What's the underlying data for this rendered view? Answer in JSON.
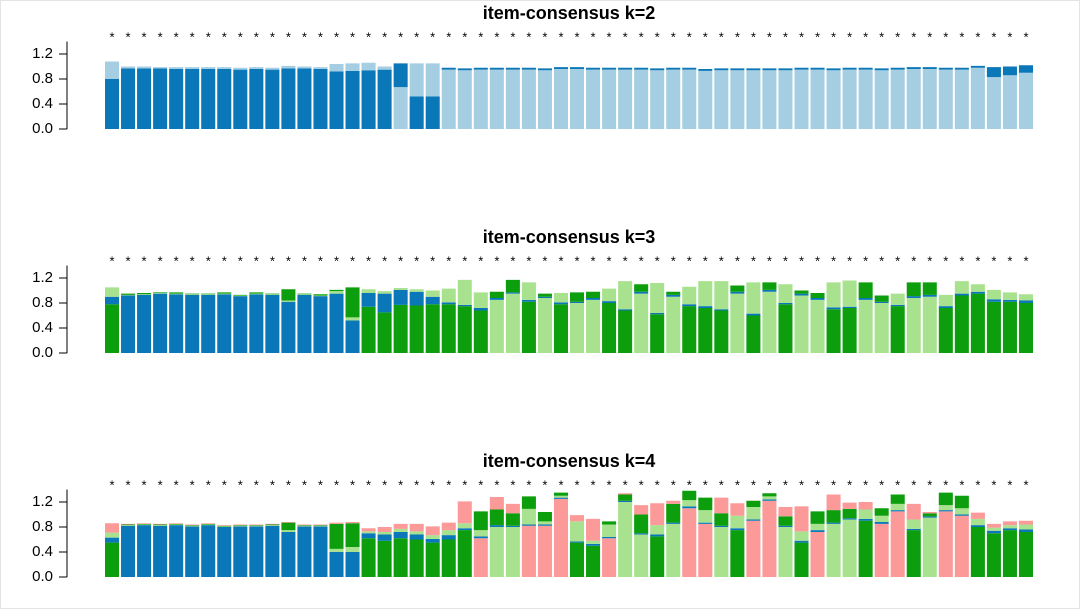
{
  "chart_data": [
    {
      "type": "bar",
      "stacked": true,
      "title": "item-consensus k=2",
      "marker": "*",
      "ylim": [
        0,
        1.4
      ],
      "yticks": [
        {
          "value": 0,
          "label": "0.0"
        },
        0.4,
        0.8,
        1.2
      ],
      "classes": [
        0,
        0,
        0,
        0,
        0,
        0,
        0,
        0,
        0,
        0,
        0,
        0,
        0,
        0,
        0,
        0,
        0,
        0,
        1,
        0,
        0,
        1,
        1,
        1,
        1,
        1,
        1,
        1,
        1,
        1,
        1,
        1,
        1,
        1,
        1,
        1,
        1,
        1,
        1,
        1,
        1,
        1,
        1,
        1,
        1,
        1,
        1,
        1,
        1,
        1,
        1,
        1,
        1,
        1,
        1,
        1,
        1,
        1
      ],
      "series": [
        {
          "color": "#0a77b8",
          "values": [
            0.8,
            0.97,
            0.97,
            0.97,
            0.96,
            0.96,
            0.96,
            0.96,
            0.95,
            0.96,
            0.95,
            0.97,
            0.97,
            0.96,
            0.92,
            0.93,
            0.94,
            0.95,
            0.38,
            0.52,
            0.52,
            0.03,
            0.03,
            0.03,
            0.03,
            0.03,
            0.03,
            0.03,
            0.03,
            0.03,
            0.03,
            0.03,
            0.03,
            0.03,
            0.03,
            0.03,
            0.03,
            0.03,
            0.03,
            0.03,
            0.03,
            0.03,
            0.03,
            0.03,
            0.03,
            0.03,
            0.03,
            0.03,
            0.03,
            0.03,
            0.03,
            0.03,
            0.03,
            0.03,
            0.03,
            0.16,
            0.14,
            0.12
          ]
        },
        {
          "color": "#a6cee3",
          "values": [
            0.28,
            0.03,
            0.03,
            0.02,
            0.03,
            0.03,
            0.03,
            0.03,
            0.03,
            0.03,
            0.03,
            0.04,
            0.03,
            0.03,
            0.12,
            0.12,
            0.12,
            0.05,
            0.67,
            0.53,
            0.53,
            0.95,
            0.94,
            0.95,
            0.95,
            0.95,
            0.95,
            0.94,
            0.96,
            0.96,
            0.95,
            0.95,
            0.95,
            0.95,
            0.94,
            0.95,
            0.95,
            0.93,
            0.94,
            0.94,
            0.94,
            0.94,
            0.94,
            0.95,
            0.95,
            0.94,
            0.95,
            0.95,
            0.94,
            0.95,
            0.96,
            0.96,
            0.95,
            0.95,
            0.98,
            0.83,
            0.86,
            0.9
          ]
        }
      ]
    },
    {
      "type": "bar",
      "stacked": true,
      "title": "item-consensus k=3",
      "marker": "*",
      "ylim": [
        0,
        1.4
      ],
      "yticks": [
        {
          "value": 0,
          "label": "0.0"
        },
        0.4,
        0.8,
        1.2
      ],
      "classes": [
        2,
        0,
        0,
        0,
        0,
        0,
        0,
        0,
        0,
        0,
        0,
        0,
        0,
        0,
        0,
        0,
        2,
        2,
        2,
        2,
        2,
        2,
        2,
        2,
        1,
        1,
        2,
        1,
        2,
        1,
        1,
        2,
        2,
        1,
        2,
        1,
        2,
        2,
        2,
        1,
        2,
        1,
        2,
        1,
        1,
        2,
        2,
        1,
        1,
        2,
        1,
        1,
        2,
        2,
        2,
        2,
        2,
        2
      ],
      "series": [
        {
          "color": "#0a77b8",
          "values": [
            0.12,
            0.92,
            0.93,
            0.95,
            0.94,
            0.93,
            0.93,
            0.94,
            0.91,
            0.94,
            0.93,
            0.82,
            0.93,
            0.91,
            0.95,
            0.52,
            0.22,
            0.3,
            0.24,
            0.22,
            0.12,
            0.03,
            0.02,
            0.04,
            0.03,
            0.02,
            0.03,
            0.02,
            0.03,
            0.02,
            0.03,
            0.03,
            0.02,
            0.03,
            0.02,
            0.03,
            0.03,
            0.03,
            0.02,
            0.03,
            0.03,
            0.03,
            0.02,
            0.03,
            0.03,
            0.03,
            0.02,
            0.03,
            0.02,
            0.02,
            0.03,
            0.03,
            0.03,
            0.03,
            0.03,
            0.04,
            0.03,
            0.04
          ]
        },
        {
          "color": "#a8e28e",
          "values": [
            0.15,
            0.01,
            0.01,
            0.01,
            0.01,
            0.01,
            0.01,
            0.01,
            0.01,
            0.01,
            0.01,
            0.02,
            0.01,
            0.01,
            0.04,
            0.05,
            0.06,
            0.04,
            0.03,
            0.04,
            0.1,
            0.22,
            0.4,
            0.25,
            0.85,
            0.95,
            0.28,
            0.88,
            0.15,
            0.8,
            0.85,
            0.2,
            0.45,
            0.95,
            0.48,
            0.9,
            0.28,
            0.4,
            0.45,
            0.95,
            0.5,
            0.98,
            0.3,
            0.92,
            0.85,
            0.4,
            0.42,
            0.85,
            0.8,
            0.18,
            0.88,
            0.9,
            0.18,
            0.2,
            0.12,
            0.15,
            0.12,
            0.1
          ]
        },
        {
          "color": "#0c9e0c",
          "values": [
            0.78,
            0.02,
            0.02,
            0.01,
            0.02,
            0.01,
            0.01,
            0.02,
            0.01,
            0.02,
            0.01,
            0.18,
            0.01,
            0.02,
            0.02,
            0.48,
            0.74,
            0.65,
            0.77,
            0.76,
            0.78,
            0.78,
            0.75,
            0.68,
            0.1,
            0.2,
            0.82,
            0.05,
            0.78,
            0.15,
            0.1,
            0.8,
            0.68,
            0.12,
            0.62,
            0.05,
            0.75,
            0.72,
            0.68,
            0.1,
            0.6,
            0.12,
            0.78,
            0.05,
            0.08,
            0.7,
            0.72,
            0.25,
            0.1,
            0.75,
            0.22,
            0.2,
            0.72,
            0.92,
            0.95,
            0.82,
            0.82,
            0.8
          ]
        }
      ]
    },
    {
      "type": "bar",
      "stacked": true,
      "title": "item-consensus k=4",
      "marker": "*",
      "ylim": [
        0,
        1.4
      ],
      "yticks": [
        {
          "value": 0,
          "label": "0.0"
        },
        0.4,
        0.8,
        1.2
      ],
      "classes": [
        2,
        0,
        0,
        0,
        0,
        0,
        0,
        0,
        0,
        0,
        0,
        0,
        0,
        0,
        0,
        0,
        2,
        2,
        2,
        2,
        2,
        2,
        2,
        3,
        1,
        1,
        3,
        3,
        3,
        2,
        2,
        3,
        1,
        1,
        2,
        1,
        3,
        3,
        1,
        2,
        3,
        3,
        1,
        2,
        3,
        1,
        1,
        2,
        3,
        3,
        2,
        1,
        3,
        3,
        2,
        2,
        2,
        2
      ],
      "series": [
        {
          "color": "#0a77b8",
          "values": [
            0.08,
            0.82,
            0.83,
            0.82,
            0.83,
            0.81,
            0.83,
            0.8,
            0.81,
            0.81,
            0.82,
            0.72,
            0.81,
            0.81,
            0.4,
            0.4,
            0.08,
            0.1,
            0.1,
            0.08,
            0.06,
            0.07,
            0.03,
            0.03,
            0.03,
            0.02,
            0.02,
            0.02,
            0.02,
            0.02,
            0.03,
            0.02,
            0.02,
            0.02,
            0.03,
            0.02,
            0.03,
            0.02,
            0.02,
            0.03,
            0.02,
            0.02,
            0.02,
            0.03,
            0.03,
            0.02,
            0.02,
            0.03,
            0.03,
            0.02,
            0.02,
            0.02,
            0.02,
            0.02,
            0.03,
            0.04,
            0.03,
            0.04
          ]
        },
        {
          "color": "#a8e28e",
          "values": [
            0.08,
            0.01,
            0.01,
            0.01,
            0.01,
            0.01,
            0.01,
            0.01,
            0.01,
            0.01,
            0.01,
            0.03,
            0.01,
            0.01,
            0.05,
            0.08,
            0.03,
            0.04,
            0.05,
            0.05,
            0.06,
            0.08,
            0.08,
            0.1,
            0.8,
            0.8,
            0.25,
            0.05,
            0.03,
            0.32,
            0.05,
            0.2,
            1.2,
            0.68,
            0.15,
            0.85,
            0.1,
            0.2,
            0.8,
            0.2,
            0.2,
            0.05,
            0.8,
            0.15,
            0.1,
            0.85,
            0.92,
            0.15,
            0.1,
            0.1,
            0.15,
            0.95,
            0.08,
            0.1,
            0.1,
            0.05,
            0.05,
            0.08
          ]
        },
        {
          "color": "#0c9e0c",
          "values": [
            0.55,
            0.01,
            0.01,
            0.01,
            0.01,
            0.01,
            0.01,
            0.01,
            0.01,
            0.01,
            0.01,
            0.12,
            0.01,
            0.01,
            0.4,
            0.38,
            0.62,
            0.58,
            0.62,
            0.6,
            0.55,
            0.6,
            0.75,
            0.3,
            0.25,
            0.2,
            0.2,
            0.15,
            0.05,
            0.55,
            0.5,
            0.05,
            0.1,
            0.3,
            0.65,
            0.3,
            0.15,
            0.2,
            0.2,
            0.75,
            0.1,
            0.05,
            0.15,
            0.55,
            0.2,
            0.2,
            0.15,
            0.9,
            0.12,
            0.15,
            0.75,
            0.05,
            0.2,
            0.2,
            0.8,
            0.7,
            0.75,
            0.72
          ]
        },
        {
          "color": "#fb9a99",
          "values": [
            0.15,
            0.01,
            0.01,
            0.01,
            0.01,
            0.01,
            0.01,
            0.01,
            0.01,
            0.01,
            0.01,
            0.01,
            0.01,
            0.01,
            0.02,
            0.02,
            0.05,
            0.08,
            0.08,
            0.12,
            0.14,
            0.12,
            0.35,
            0.62,
            0.2,
            0.15,
            0.82,
            0.82,
            1.25,
            0.1,
            0.35,
            0.62,
            0.02,
            0.15,
            0.35,
            0.05,
            1.1,
            0.85,
            0.25,
            0.2,
            0.9,
            1.22,
            0.15,
            0.4,
            0.72,
            0.25,
            0.1,
            0.12,
            0.85,
            1.05,
            0.25,
            0.02,
            1.05,
            0.98,
            0.1,
            0.06,
            0.06,
            0.06
          ]
        }
      ]
    }
  ]
}
